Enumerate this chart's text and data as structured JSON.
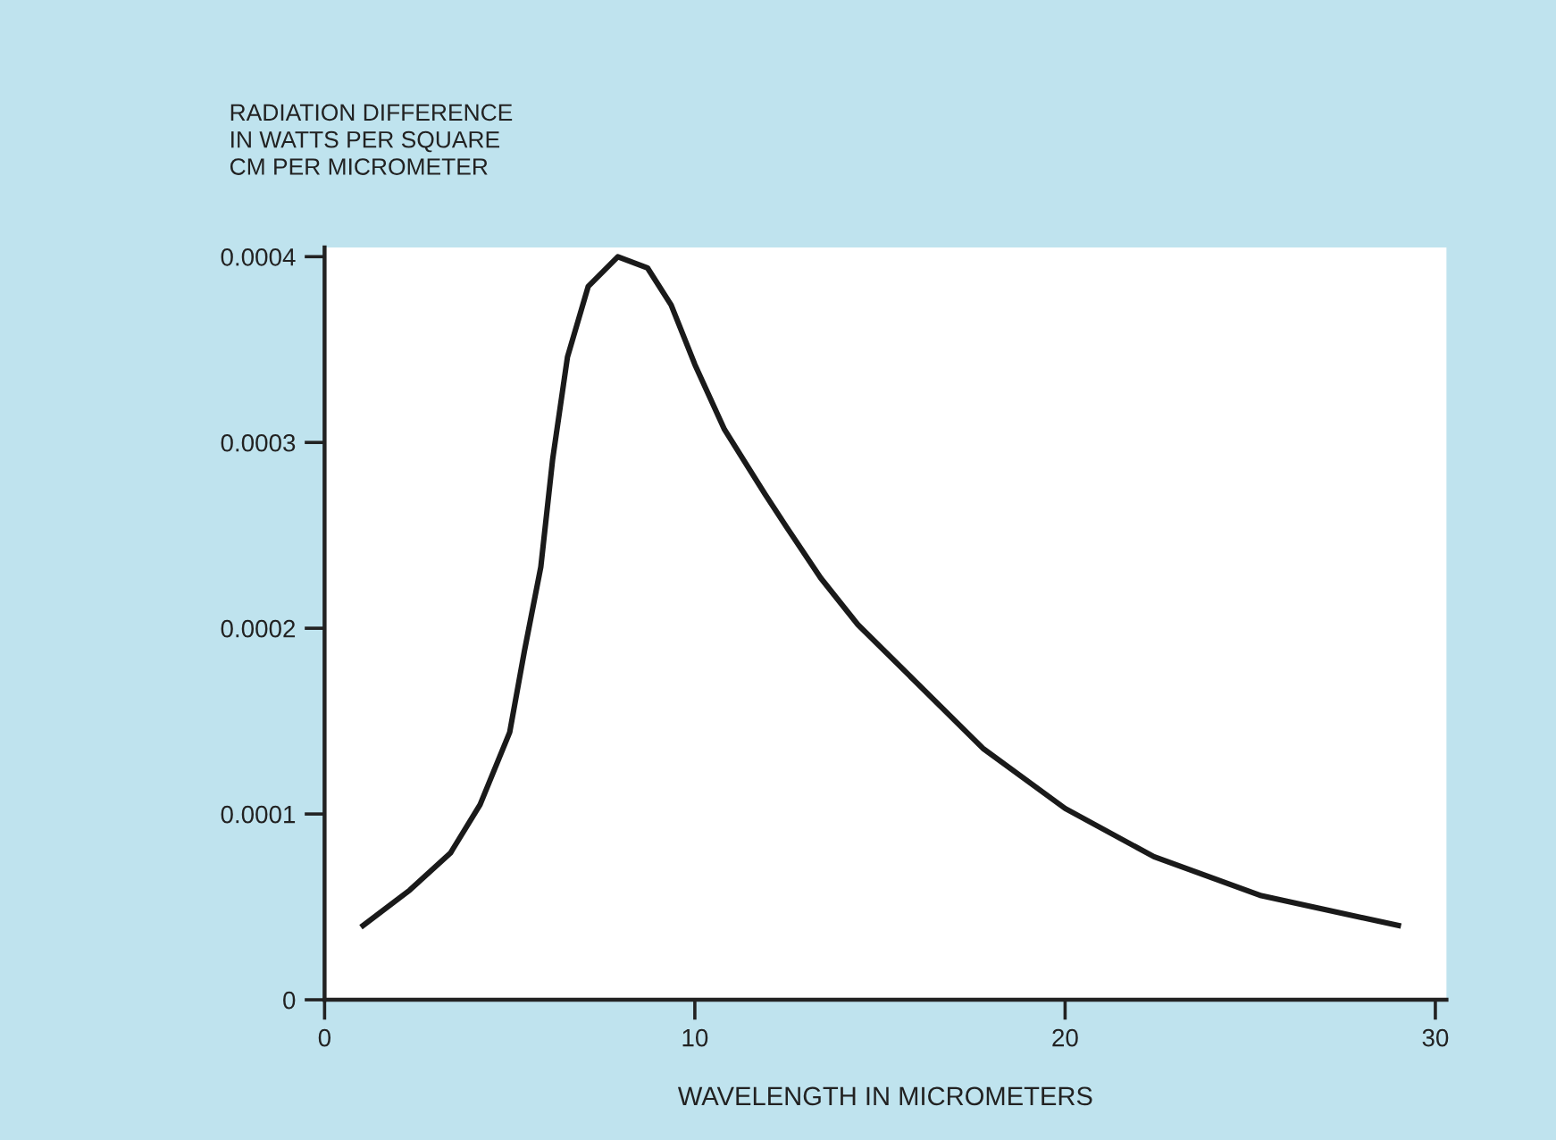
{
  "chart_data": {
    "type": "line",
    "ylabel": "RADIATION DIFFERENCE\nIN WATTS PER SQUARE\nCM PER MICROMETER",
    "xlabel": "WAVELENGTH IN MICROMETERS",
    "x": [
      1.04,
      2.3,
      3.4,
      4.2,
      5.0,
      5.4,
      5.84,
      6.16,
      6.56,
      7.12,
      7.92,
      8.72,
      9.36,
      10.0,
      10.8,
      11.9,
      12.46,
      13.4,
      14.4,
      17.8,
      20.0,
      22.4,
      25.3,
      29.0
    ],
    "series": [
      {
        "color": "#1a1a1a",
        "values": [
          4e-05,
          5.9e-05,
          7.9e-05,
          0.000105,
          0.000144,
          0.000188,
          0.000233,
          0.000291,
          0.000346,
          0.000384,
          0.0004,
          0.000394,
          0.000374,
          0.000342,
          0.000307,
          0.000272,
          0.000255,
          0.000227,
          0.000202,
          0.000135,
          0.000103,
          7.7e-05,
          5.6e-05,
          4e-05
        ]
      }
    ],
    "xlim": [
      0,
      30.3
    ],
    "xticks": [
      0,
      10,
      20,
      30
    ],
    "ylim": [
      0,
      0.000405
    ],
    "yticks": [
      0,
      0.0001,
      0.0002,
      0.0003,
      0.0004
    ],
    "grid": false,
    "legend": false,
    "marker": "none",
    "line_style": "solid"
  }
}
